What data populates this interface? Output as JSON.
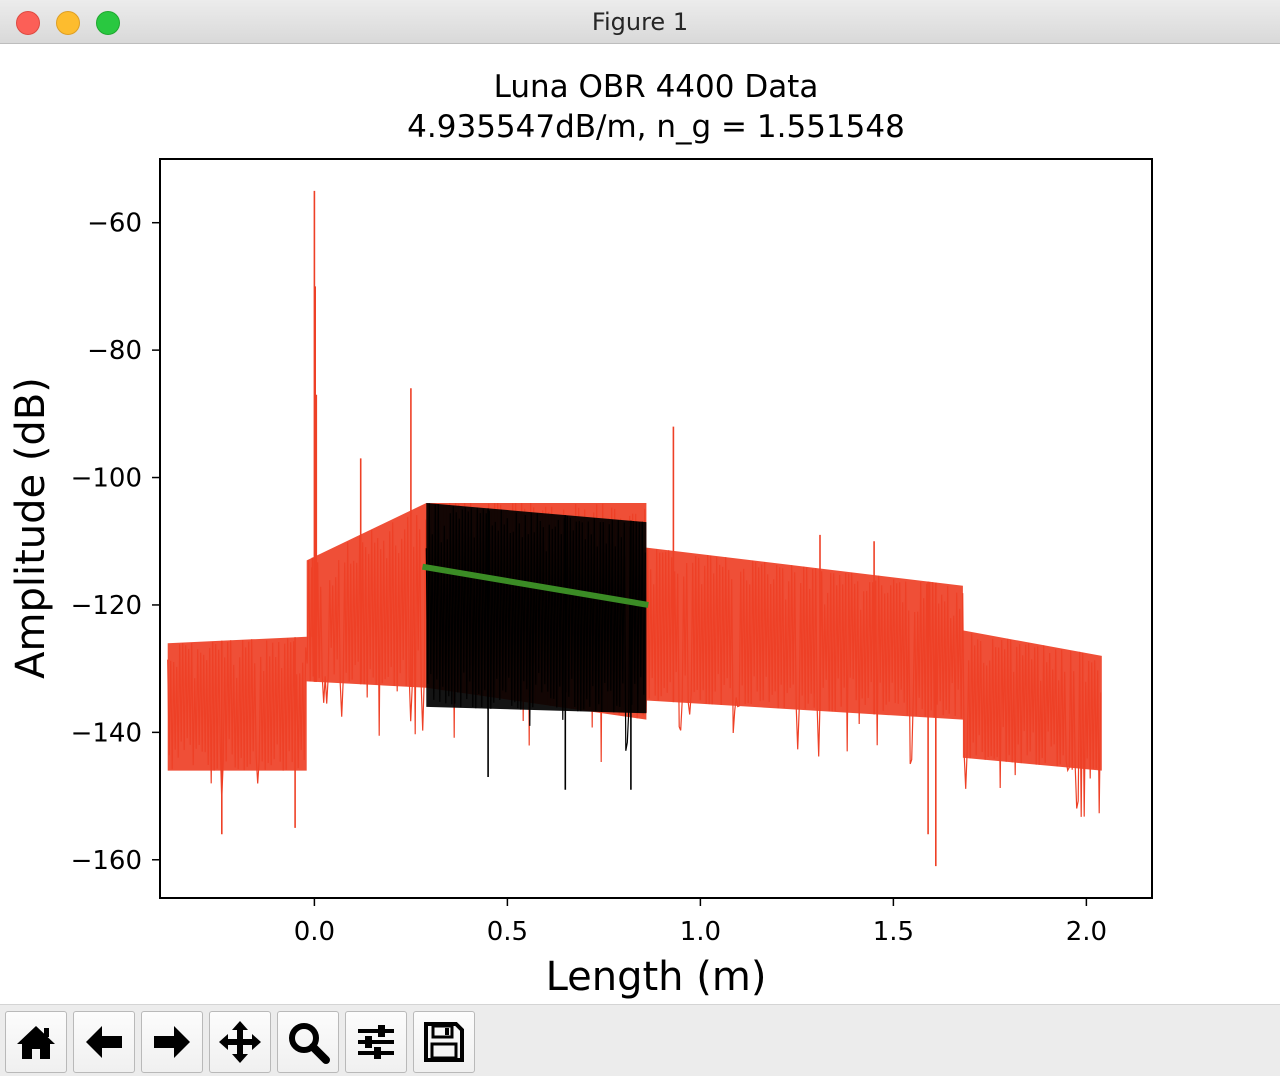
{
  "window": {
    "title": "Figure 1"
  },
  "toolbar": {
    "buttons": [
      {
        "name": "home-button",
        "icon": "home-icon"
      },
      {
        "name": "back-button",
        "icon": "arrow-left-icon"
      },
      {
        "name": "forward-button",
        "icon": "arrow-right-icon"
      },
      {
        "name": "pan-button",
        "icon": "move-icon"
      },
      {
        "name": "zoom-button",
        "icon": "magnifier-icon"
      },
      {
        "name": "configure-subplots-button",
        "icon": "sliders-icon"
      },
      {
        "name": "save-button",
        "icon": "floppy-disk-icon"
      }
    ]
  },
  "chart_data": {
    "type": "line",
    "title": "Luna OBR 4400 Data",
    "subtitle": "4.935547dB/m, n_g = 1.551548",
    "xlabel": "Length (m)",
    "ylabel": "Amplitude (dB)",
    "xlim": [
      -0.4,
      2.17
    ],
    "ylim": [
      -166,
      -50
    ],
    "xticks": [
      0.0,
      0.5,
      1.0,
      1.5,
      2.0
    ],
    "xtick_labels": [
      "0.0",
      "0.5",
      "1.0",
      "1.5",
      "2.0"
    ],
    "yticks": [
      -60,
      -80,
      -100,
      -120,
      -140,
      -160
    ],
    "ytick_labels": [
      "−60",
      "−80",
      "−100",
      "−120",
      "−140",
      "−160"
    ],
    "grid": false,
    "colors": {
      "full_trace": "#ee4026",
      "fit_region": "#000000",
      "fit_line": "#3b8c25"
    },
    "series": [
      {
        "role": "full_trace",
        "envelope_x": [
          -0.38,
          -0.02,
          -0.02,
          0.29,
          0.29,
          0.86,
          0.86,
          1.68,
          1.68,
          2.04
        ],
        "envelope_top": [
          -126,
          -125,
          -113,
          -104,
          -104,
          -104,
          -111,
          -117,
          -124,
          -128
        ],
        "envelope_bottom": [
          -146,
          -146,
          -132,
          -133,
          -133,
          -138,
          -135,
          -138,
          -144,
          -146
        ],
        "spikes": [
          {
            "x": -0.005,
            "y": -125
          },
          {
            "x": 0.0,
            "y": -55
          },
          {
            "x": 0.002,
            "y": -70
          },
          {
            "x": 0.005,
            "y": -87
          },
          {
            "x": 0.12,
            "y": -97
          },
          {
            "x": 0.25,
            "y": -86
          },
          {
            "x": 0.93,
            "y": -92
          },
          {
            "x": 1.31,
            "y": -109
          },
          {
            "x": 1.45,
            "y": -110
          },
          {
            "x": 1.59,
            "y": -156
          },
          {
            "x": 1.61,
            "y": -161
          },
          {
            "x": -0.24,
            "y": -156
          },
          {
            "x": -0.05,
            "y": -155
          }
        ]
      },
      {
        "role": "fit_region",
        "envelope_x": [
          0.29,
          0.86
        ],
        "envelope_top": [
          -104,
          -107
        ],
        "envelope_bottom": [
          -136,
          -137
        ],
        "spikes": [
          {
            "x": 0.45,
            "y": -147
          },
          {
            "x": 0.65,
            "y": -149
          },
          {
            "x": 0.82,
            "y": -149
          }
        ]
      },
      {
        "role": "fit_line",
        "x": [
          0.28,
          0.865
        ],
        "y": [
          -114,
          -120
        ]
      }
    ]
  }
}
